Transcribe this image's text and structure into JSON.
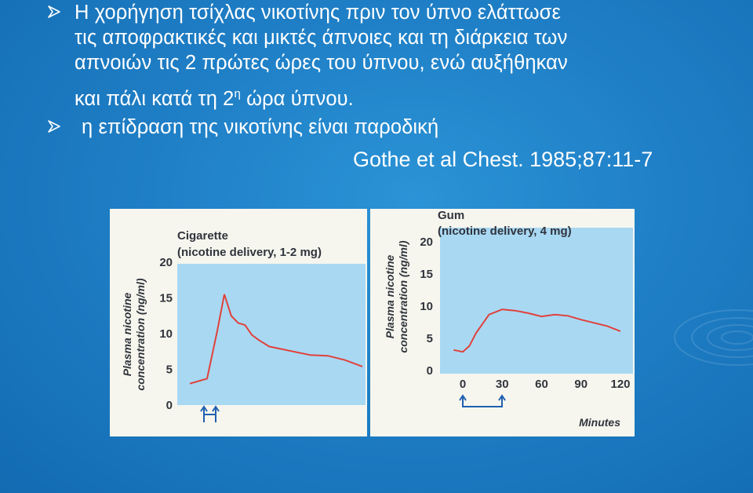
{
  "bullets": [
    {
      "lines": [
        "Η χορήγηση τσίχλας νικοτίνης πριν τον ύπνο ελάττωσε",
        "τις αποφρακτικές και μικτές άπνοιες και τη διάρκεια των",
        "απνοιών τις 2 πρώτες ώρες του ύπνου, ενώ αυξήθηκαν"
      ],
      "last_line_before": "και πάλι κατά τη 2",
      "last_line_sup": "η",
      "last_line_after": " ώρα ύπνου."
    },
    {
      "lines": [
        "η επίδραση της νικοτίνης είναι παροδική"
      ]
    }
  ],
  "citation": "Gothe et al Chest. 1985;87:11-7",
  "colors": {
    "panel_bg": "#f6f6ee",
    "plot_bg": "#a9d8f3",
    "curve": "#e0413a",
    "arrow": "#2060b0",
    "bullet": "#ffffff"
  },
  "icons": {
    "bullet": "arrowhead-bullet-icon",
    "arrow": "up-arrow-icon"
  },
  "figure": {
    "left_panel": {
      "title": "Cigarette",
      "subtitle": "(nicotine delivery, 1-2 mg)",
      "ylabel_line1": "Plasma nicotine",
      "ylabel_line2": "concentration (ng/ml)",
      "yticks": [
        "20",
        "15",
        "10",
        "5",
        "0"
      ]
    },
    "right_panel": {
      "title": "Gum",
      "subtitle": "(nicotine delivery, 4 mg)",
      "ylabel_line1": "Plasma nicotine",
      "ylabel_line2": "concentration (ng/ml)",
      "yticks": [
        "20",
        "15",
        "10",
        "5",
        "0"
      ],
      "xticks": [
        "0",
        "30",
        "60",
        "90",
        "120"
      ],
      "xlabel": "Minutes"
    }
  },
  "chart_data": [
    {
      "type": "line",
      "title": "Cigarette",
      "subtitle": "(nicotine delivery, 1-2 mg)",
      "xlabel": "",
      "ylabel": "Plasma nicotine concentration (ng/ml)",
      "ylim": [
        0,
        20
      ],
      "series": [
        {
          "x": [
            0,
            0.1,
            0.16,
            0.2,
            0.24,
            0.28,
            0.32,
            0.36,
            0.4,
            0.46,
            0.52,
            0.6,
            0.7,
            0.8,
            0.9,
            1.0
          ],
          "values": [
            3,
            3.7,
            10.5,
            15.5,
            12.5,
            11.5,
            11.2,
            9.8,
            9.1,
            8.2,
            7.9,
            7.5,
            7.0,
            6.9,
            6.3,
            5.4
          ]
        }
      ]
    },
    {
      "type": "line",
      "title": "Gum",
      "subtitle": "(nicotine delivery, 4 mg)",
      "xlabel": "Minutes",
      "ylabel": "Plasma nicotine concentration (ng/ml)",
      "ylim": [
        0,
        20
      ],
      "xlim": [
        -7,
        120
      ],
      "series": [
        {
          "x": [
            -7,
            0,
            5,
            10,
            20,
            30,
            40,
            50,
            60,
            70,
            80,
            90,
            100,
            110,
            120
          ],
          "values": [
            3.2,
            2.9,
            3.8,
            5.8,
            8.7,
            9.5,
            9.3,
            8.9,
            8.4,
            8.7,
            8.5,
            7.9,
            7.4,
            6.9,
            6.1
          ]
        }
      ]
    }
  ]
}
